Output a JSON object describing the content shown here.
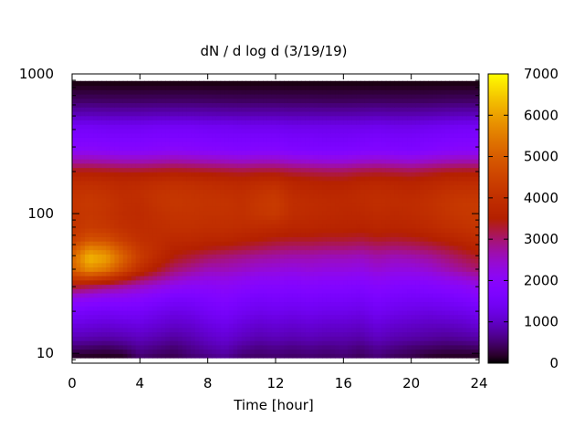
{
  "chart_data": {
    "type": "heatmap",
    "title": "dN / d log d (3/19/19)",
    "xlabel": "Time [hour]",
    "ylabel": "",
    "xlim": [
      0,
      24
    ],
    "ylim": [
      8.5,
      1000
    ],
    "y_scale": "log",
    "x_ticks": [
      0,
      4,
      8,
      12,
      16,
      20,
      24
    ],
    "x_tick_labels": [
      "0",
      "4",
      "8",
      "12",
      "16",
      "20",
      "24"
    ],
    "y_ticks": [
      10,
      100,
      1000
    ],
    "y_tick_labels": [
      "10",
      "100",
      "1000"
    ],
    "colorbar": {
      "min": 0,
      "max": 7000,
      "ticks": [
        0,
        1000,
        2000,
        3000,
        4000,
        5000,
        6000,
        7000
      ],
      "tick_labels": [
        "0",
        "1000",
        "2000",
        "3000",
        "4000",
        "5000",
        "6000",
        "7000"
      ],
      "palette": "gnuplot-pm3d"
    },
    "data_extent": {
      "x": [
        0,
        24
      ],
      "y": [
        9.3,
        890
      ]
    },
    "y_centers": [
      9.5,
      11,
      13,
      16,
      20,
      25,
      30,
      35,
      40,
      48,
      56,
      66,
      80,
      100,
      120,
      140,
      165,
      200,
      240,
      290,
      350,
      420,
      520,
      650,
      800,
      890
    ],
    "x_centers": [
      0,
      1,
      2,
      3,
      4,
      5,
      6,
      7,
      8,
      9,
      10,
      11,
      12,
      13,
      14,
      15,
      16,
      17,
      18,
      19,
      20,
      21,
      22,
      23,
      24
    ],
    "values": [
      [
        150,
        140,
        120,
        140,
        500,
        400,
        350,
        500,
        600,
        700,
        500,
        450,
        500,
        450,
        500,
        450,
        500,
        400,
        550,
        400,
        350,
        200,
        150,
        150,
        150
      ],
      [
        500,
        450,
        400,
        500,
        700,
        600,
        500,
        650,
        800,
        900,
        700,
        600,
        650,
        600,
        650,
        600,
        650,
        550,
        700,
        600,
        500,
        450,
        400,
        400,
        450
      ],
      [
        900,
        850,
        800,
        850,
        950,
        850,
        750,
        850,
        1000,
        1100,
        950,
        850,
        900,
        850,
        900,
        850,
        850,
        800,
        950,
        850,
        800,
        750,
        700,
        750,
        800
      ],
      [
        1200,
        1150,
        1100,
        1150,
        1200,
        1100,
        1000,
        1050,
        1200,
        1300,
        1150,
        1050,
        1100,
        1050,
        1100,
        1050,
        1050,
        1000,
        1150,
        1050,
        1000,
        950,
        950,
        1000,
        1100
      ],
      [
        1600,
        1500,
        1450,
        1500,
        1500,
        1350,
        1250,
        1300,
        1450,
        1550,
        1400,
        1300,
        1350,
        1300,
        1350,
        1300,
        1300,
        1250,
        1400,
        1300,
        1250,
        1200,
        1250,
        1300,
        1400
      ],
      [
        2200,
        2100,
        2000,
        2000,
        1900,
        1750,
        1600,
        1600,
        1700,
        1800,
        1650,
        1550,
        1600,
        1550,
        1600,
        1550,
        1550,
        1500,
        1650,
        1550,
        1500,
        1500,
        1550,
        1650,
        1800
      ],
      [
        3300,
        3100,
        2900,
        2700,
        2500,
        2300,
        2100,
        2000,
        2000,
        2050,
        1950,
        1850,
        1850,
        1800,
        1850,
        1800,
        1800,
        1750,
        1900,
        1800,
        1750,
        1800,
        1900,
        2000,
        2200
      ],
      [
        4300,
        4500,
        4200,
        3700,
        3200,
        2900,
        2600,
        2400,
        2300,
        2300,
        2200,
        2100,
        2100,
        2050,
        2100,
        2050,
        2050,
        2000,
        2150,
        2050,
        2050,
        2100,
        2250,
        2400,
        2600
      ],
      [
        5000,
        5700,
        5400,
        4600,
        3900,
        3400,
        3000,
        2800,
        2600,
        2600,
        2500,
        2400,
        2350,
        2300,
        2350,
        2300,
        2300,
        2250,
        2400,
        2300,
        2300,
        2400,
        2600,
        2800,
        3000
      ],
      [
        5200,
        6300,
        6000,
        5100,
        4300,
        3800,
        3400,
        3200,
        3000,
        2900,
        2800,
        2700,
        2650,
        2600,
        2600,
        2550,
        2550,
        2500,
        2650,
        2550,
        2600,
        2700,
        2900,
        3100,
        3300
      ],
      [
        4800,
        5700,
        5500,
        4800,
        4200,
        3900,
        3600,
        3500,
        3400,
        3300,
        3200,
        3100,
        3000,
        2950,
        2950,
        2900,
        2900,
        2850,
        2950,
        2900,
        2950,
        3050,
        3200,
        3400,
        3600
      ],
      [
        4300,
        4800,
        4700,
        4300,
        4000,
        3900,
        3800,
        3800,
        3700,
        3700,
        3600,
        3500,
        3400,
        3350,
        3350,
        3300,
        3300,
        3250,
        3350,
        3300,
        3350,
        3450,
        3600,
        3750,
        3900
      ],
      [
        4100,
        4300,
        4200,
        4000,
        3900,
        3950,
        4000,
        4000,
        3950,
        3950,
        3900,
        3850,
        3800,
        3700,
        3700,
        3650,
        3650,
        3600,
        3700,
        3650,
        3700,
        3800,
        3950,
        4050,
        4150
      ],
      [
        4100,
        4200,
        4100,
        3900,
        3850,
        4000,
        4100,
        4100,
        4050,
        4050,
        4000,
        4150,
        4250,
        3900,
        3850,
        3800,
        3750,
        3750,
        3850,
        3800,
        3850,
        3950,
        4100,
        4200,
        4250
      ],
      [
        4150,
        4250,
        4150,
        3950,
        3900,
        4100,
        4200,
        4150,
        4100,
        4100,
        4000,
        4200,
        4300,
        3950,
        3900,
        3850,
        3800,
        3850,
        3950,
        3900,
        3900,
        4000,
        4150,
        4250,
        4250
      ],
      [
        4050,
        4150,
        4050,
        3900,
        3950,
        4100,
        4150,
        4100,
        4050,
        4000,
        3950,
        4100,
        4200,
        3850,
        3800,
        3750,
        3750,
        3850,
        3900,
        3850,
        3800,
        3900,
        4050,
        4100,
        4100
      ],
      [
        3900,
        3950,
        3900,
        3800,
        3850,
        3950,
        4000,
        3950,
        3900,
        3850,
        3800,
        3900,
        3950,
        3700,
        3650,
        3600,
        3600,
        3700,
        3750,
        3700,
        3650,
        3750,
        3850,
        3900,
        3900
      ],
      [
        3500,
        3500,
        3450,
        3400,
        3400,
        3450,
        3500,
        3450,
        3400,
        3350,
        3300,
        3350,
        3350,
        3250,
        3200,
        3150,
        3150,
        3250,
        3300,
        3250,
        3200,
        3300,
        3400,
        3450,
        3450
      ],
      [
        2700,
        2700,
        2650,
        2600,
        2600,
        2650,
        2700,
        2650,
        2600,
        2550,
        2500,
        2550,
        2550,
        2450,
        2400,
        2350,
        2350,
        2450,
        2500,
        2450,
        2400,
        2500,
        2600,
        2650,
        2650
      ],
      [
        2000,
        2000,
        1950,
        1900,
        1900,
        1950,
        2000,
        1950,
        1900,
        1850,
        1800,
        1850,
        1850,
        1750,
        1700,
        1700,
        1700,
        1750,
        1800,
        1750,
        1700,
        1800,
        1900,
        1950,
        1950
      ],
      [
        1700,
        1700,
        1650,
        1650,
        1650,
        1700,
        1700,
        1700,
        1650,
        1600,
        1600,
        1600,
        1600,
        1550,
        1550,
        1500,
        1500,
        1550,
        1600,
        1550,
        1550,
        1600,
        1650,
        1700,
        1700
      ],
      [
        1450,
        1450,
        1400,
        1400,
        1400,
        1450,
        1450,
        1450,
        1400,
        1400,
        1350,
        1350,
        1350,
        1300,
        1300,
        1300,
        1300,
        1300,
        1350,
        1300,
        1300,
        1350,
        1400,
        1450,
        1450
      ],
      [
        900,
        900,
        880,
        880,
        880,
        900,
        900,
        900,
        880,
        860,
        850,
        850,
        850,
        830,
        830,
        820,
        820,
        830,
        850,
        830,
        830,
        850,
        880,
        900,
        900
      ],
      [
        450,
        450,
        440,
        440,
        440,
        450,
        450,
        450,
        440,
        430,
        420,
        420,
        420,
        410,
        410,
        400,
        400,
        410,
        420,
        410,
        410,
        420,
        440,
        450,
        450
      ],
      [
        180,
        180,
        175,
        175,
        175,
        180,
        180,
        180,
        175,
        170,
        165,
        165,
        165,
        160,
        160,
        160,
        160,
        160,
        165,
        160,
        160,
        165,
        175,
        180,
        180
      ],
      [
        40,
        40,
        40,
        40,
        40,
        40,
        40,
        40,
        40,
        40,
        40,
        40,
        40,
        40,
        40,
        40,
        40,
        40,
        40,
        40,
        40,
        40,
        40,
        40,
        40
      ]
    ]
  }
}
